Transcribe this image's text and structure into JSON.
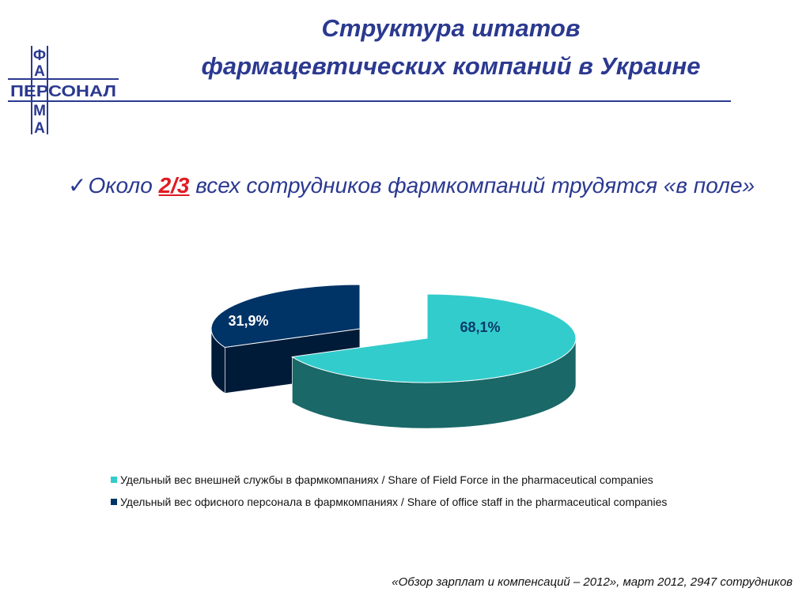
{
  "title": {
    "line1": "Структура штатов",
    "line2": "фармацевтических компаний в Украине"
  },
  "logo": {
    "vertical_letters": [
      "Ф",
      "А",
      "",
      "М",
      "А"
    ],
    "horizontal_word": "ПЕРСОНАЛ",
    "color": "#2b3990"
  },
  "bullet": {
    "icon": "check-icon",
    "prefix": "Около ",
    "highlight": "2/3",
    "suffix": " всех сотрудников фармкомпаний трудятся «в поле»"
  },
  "chart_data": {
    "type": "pie",
    "style": "3d-exploded",
    "slices": [
      {
        "label": "Удельный вес внешней службы в фармкомпаниях / Share of Field Force in the pharmaceutical companies",
        "value": 68.1,
        "display": "68,1%",
        "color": "#33cccc"
      },
      {
        "label": "Удельный вес офисного персонала в фармкомпаниях / Share of office staff in the pharmaceutical companies",
        "value": 31.9,
        "display": "31,9%",
        "color": "#003366"
      }
    ],
    "legend_position": "bottom"
  },
  "source": "«Обзор зарплат и компенсаций – 2012», март 2012, 2947 сотрудников"
}
